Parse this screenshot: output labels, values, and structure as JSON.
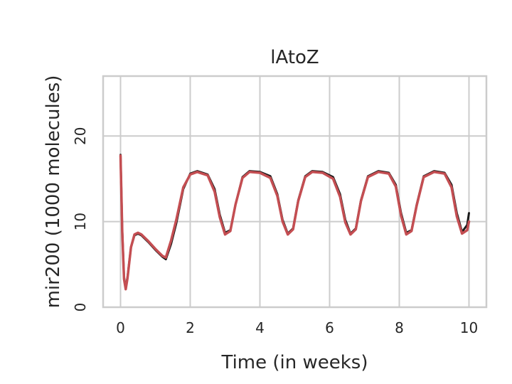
{
  "chart_data": {
    "type": "line",
    "title": "lAtoZ",
    "xlabel": "Time (in weeks)",
    "ylabel": "mir200 (1000 molecules)",
    "xlim": [
      -0.5,
      10.5
    ],
    "ylim": [
      0,
      27
    ],
    "xticks": [
      0,
      2,
      4,
      6,
      8,
      10
    ],
    "yticks": [
      0,
      10,
      20
    ],
    "grid": true,
    "colors": {
      "series_1": "#1a1a1a",
      "series_2": "#c44e52",
      "grid": "#cccccc"
    },
    "series": [
      {
        "color": "#1a1a1a",
        "x": [
          0,
          0.05,
          0.1,
          0.15,
          0.2,
          0.3,
          0.4,
          0.5,
          0.6,
          0.8,
          1.0,
          1.2,
          1.3,
          1.45,
          1.6,
          1.8,
          2.0,
          2.2,
          2.5,
          2.7,
          2.85,
          3.0,
          3.15,
          3.3,
          3.5,
          3.7,
          4.0,
          4.3,
          4.5,
          4.65,
          4.8,
          4.95,
          5.1,
          5.3,
          5.5,
          5.8,
          6.1,
          6.3,
          6.45,
          6.6,
          6.75,
          6.9,
          7.1,
          7.4,
          7.7,
          7.9,
          8.05,
          8.2,
          8.35,
          8.5,
          8.7,
          9.0,
          9.3,
          9.5,
          9.65,
          9.8,
          9.95,
          10.0
        ],
        "y": [
          17.8,
          9.0,
          3.5,
          2.3,
          3.5,
          7.0,
          8.4,
          8.6,
          8.4,
          7.6,
          6.7,
          5.9,
          5.6,
          7.4,
          9.8,
          13.8,
          15.6,
          15.9,
          15.5,
          13.8,
          10.8,
          8.7,
          9.0,
          12.0,
          15.2,
          15.9,
          15.8,
          15.3,
          13.2,
          10.2,
          8.6,
          9.2,
          12.5,
          15.3,
          15.9,
          15.8,
          15.2,
          13.2,
          10.2,
          8.6,
          9.2,
          12.5,
          15.3,
          15.9,
          15.7,
          14.3,
          11.0,
          8.7,
          9.0,
          12.0,
          15.3,
          15.9,
          15.7,
          14.3,
          11.0,
          8.8,
          9.6,
          11.0
        ]
      },
      {
        "color": "#c44e52",
        "x": [
          0,
          0.05,
          0.1,
          0.15,
          0.2,
          0.3,
          0.4,
          0.5,
          0.6,
          0.8,
          1.0,
          1.2,
          1.3,
          1.45,
          1.6,
          1.8,
          2.0,
          2.2,
          2.5,
          2.7,
          2.85,
          3.0,
          3.15,
          3.3,
          3.5,
          3.7,
          4.0,
          4.3,
          4.5,
          4.65,
          4.8,
          4.95,
          5.1,
          5.3,
          5.5,
          5.8,
          6.1,
          6.3,
          6.45,
          6.6,
          6.75,
          6.9,
          7.1,
          7.4,
          7.7,
          7.9,
          8.05,
          8.2,
          8.35,
          8.5,
          8.7,
          9.0,
          9.3,
          9.5,
          9.65,
          9.8,
          9.95,
          10.0
        ],
        "y": [
          17.7,
          8.8,
          3.3,
          2.1,
          3.4,
          7.0,
          8.5,
          8.7,
          8.5,
          7.7,
          6.8,
          6.0,
          5.8,
          7.8,
          10.2,
          14.0,
          15.5,
          15.8,
          15.4,
          13.5,
          10.5,
          8.5,
          8.9,
          12.0,
          15.1,
          15.8,
          15.7,
          15.1,
          13.0,
          10.0,
          8.5,
          9.1,
          12.4,
          15.2,
          15.8,
          15.7,
          15.0,
          12.9,
          9.9,
          8.5,
          9.1,
          12.4,
          15.2,
          15.8,
          15.6,
          14.1,
          10.7,
          8.5,
          8.9,
          11.9,
          15.2,
          15.8,
          15.6,
          14.0,
          10.6,
          8.6,
          9.0,
          10.0
        ]
      }
    ]
  }
}
